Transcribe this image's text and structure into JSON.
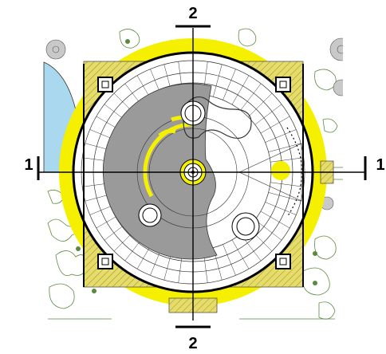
{
  "section_marks": {
    "top": "2",
    "bottom": "2",
    "left": "1",
    "right": "1"
  },
  "colors": {
    "highlight_yellow": "#f5f000",
    "hatch_yellow": "#d8c84a",
    "pond_blue": "#a9d8ef",
    "shade_gray": "#9a9a9a",
    "vegetation_green": "#5a8a3c",
    "line_black": "#000000"
  },
  "icons": [
    "tree-symbol-icon",
    "column-marker-icon",
    "well-icon"
  ]
}
